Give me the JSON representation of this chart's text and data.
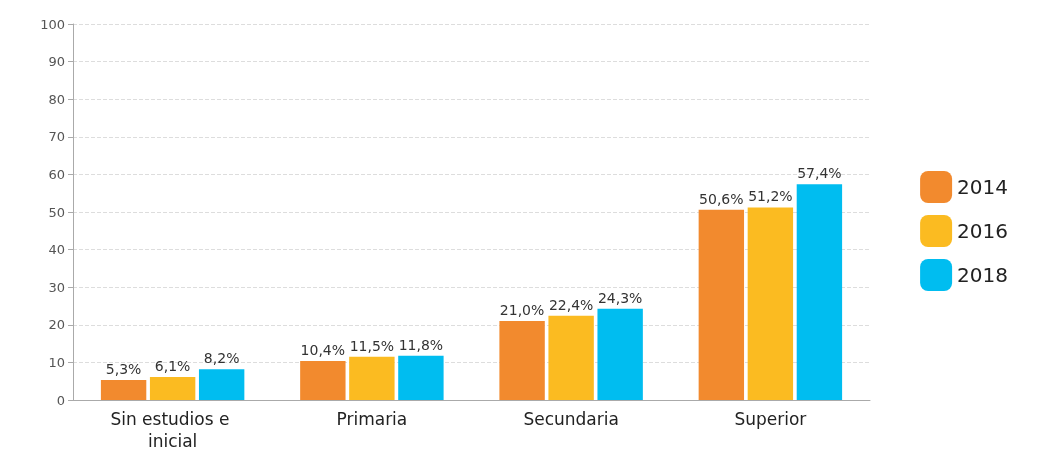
{
  "chart_data": {
    "type": "bar",
    "categories": [
      "Sin estudios e inicial",
      "Primaria",
      "Secundaria",
      "Superior"
    ],
    "series": [
      {
        "name": "2014",
        "color": "#f28a2e",
        "values": [
          5.3,
          10.4,
          21.0,
          50.6
        ],
        "value_labels": [
          "5,3%",
          "10,4%",
          "21,0%",
          "50,6%"
        ]
      },
      {
        "name": "2016",
        "color": "#fbbb21",
        "values": [
          6.1,
          11.5,
          22.4,
          51.2
        ],
        "value_labels": [
          "6,1%",
          "11,5%",
          "22,4%",
          "51,2%"
        ]
      },
      {
        "name": "2018",
        "color": "#00bdf0",
        "values": [
          8.2,
          11.8,
          24.3,
          57.4
        ],
        "value_labels": [
          "8,2%",
          "11,8%",
          "24,3%",
          "57,4%"
        ]
      }
    ],
    "ylim": [
      0,
      100
    ],
    "yticks": [
      0,
      10,
      20,
      30,
      40,
      50,
      60,
      70,
      80,
      90,
      100
    ],
    "grid": "y",
    "legend": "right"
  }
}
